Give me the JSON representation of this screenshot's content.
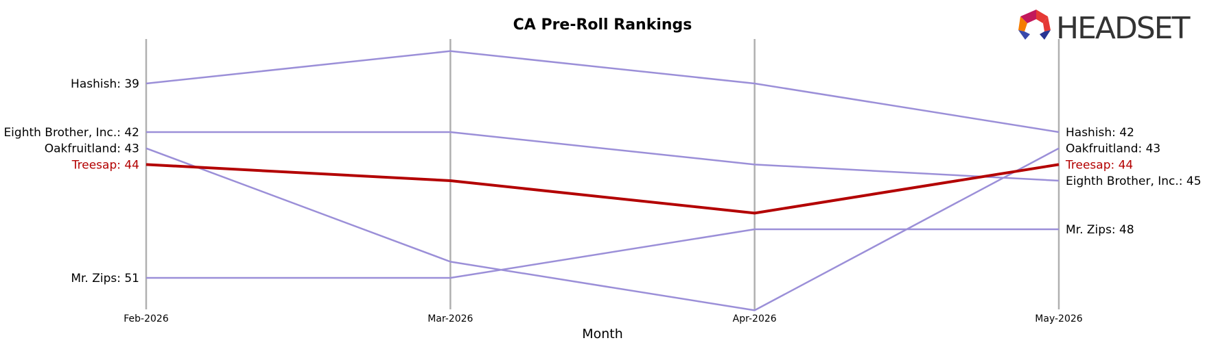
{
  "chart_data": {
    "type": "line",
    "title": "CA Pre-Roll Rankings",
    "xlabel": "Month",
    "ylabel": "",
    "categories": [
      "Feb-2026",
      "Mar-2026",
      "Apr-2026",
      "May-2026"
    ],
    "y_inverted": true,
    "ylim": [
      54.5,
      36.5
    ],
    "grid": "vertical lines at each month",
    "highlight_series": "Treesap",
    "series": [
      {
        "name": "Hashish",
        "values": [
          39,
          37,
          39,
          42
        ],
        "color": "#9b8fd8"
      },
      {
        "name": "Eighth Brother, Inc.",
        "values": [
          42,
          42,
          44,
          45
        ],
        "color": "#9b8fd8"
      },
      {
        "name": "Oakfruitland",
        "values": [
          43,
          50,
          53,
          43
        ],
        "color": "#9b8fd8"
      },
      {
        "name": "Treesap",
        "values": [
          44,
          45,
          47,
          44
        ],
        "color": "#b30000"
      },
      {
        "name": "Mr. Zips",
        "values": [
          51,
          51,
          48,
          48
        ],
        "color": "#9b8fd8"
      }
    ],
    "start_labels": [
      {
        "series": "Hashish",
        "text": "Hashish: 39"
      },
      {
        "series": "Eighth Brother, Inc.",
        "text": "Eighth Brother, Inc.: 42"
      },
      {
        "series": "Oakfruitland",
        "text": "Oakfruitland: 43"
      },
      {
        "series": "Treesap",
        "text": "Treesap: 44"
      },
      {
        "series": "Mr. Zips",
        "text": "Mr. Zips: 51"
      }
    ],
    "end_labels": [
      {
        "series": "Hashish",
        "text": "Hashish: 42"
      },
      {
        "series": "Oakfruitland",
        "text": "Oakfruitland: 43"
      },
      {
        "series": "Treesap",
        "text": "Treesap: 44"
      },
      {
        "series": "Eighth Brother, Inc.",
        "text": "Eighth Brother, Inc.: 45"
      },
      {
        "series": "Mr. Zips",
        "text": "Mr. Zips: 48"
      }
    ]
  },
  "logo": {
    "text": "HEADSET",
    "colors": [
      "#c2185b",
      "#e53935",
      "#f57c00",
      "#3949ab",
      "#283593"
    ]
  },
  "colors": {
    "gridline": "#b0b0b0",
    "series_default": "#9b8fd8",
    "highlight": "#b30000"
  }
}
